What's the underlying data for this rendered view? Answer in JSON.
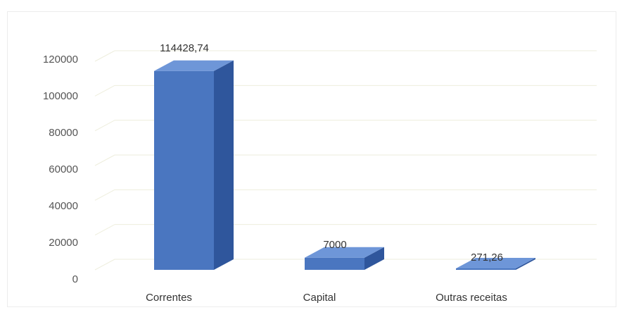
{
  "chart_data": {
    "type": "bar",
    "style": "3d-column",
    "categories": [
      "Correntes",
      "Capital",
      "Outras receitas"
    ],
    "values": [
      114428.74,
      7000,
      271.26
    ],
    "data_labels": [
      "114428,74",
      "7000",
      "271,26"
    ],
    "title": "",
    "xlabel": "",
    "ylabel": "",
    "ylim": [
      0,
      120000
    ],
    "yticks": [
      "0",
      "20000",
      "40000",
      "60000",
      "80000",
      "100000",
      "120000"
    ],
    "grid": true,
    "legend": "none",
    "colors": {
      "bar_front": "#4a76c0",
      "bar_side": "#2f569c",
      "bar_top": "#6e96d8",
      "gridline": "#eeeedd",
      "axis_label": "#555555"
    }
  }
}
